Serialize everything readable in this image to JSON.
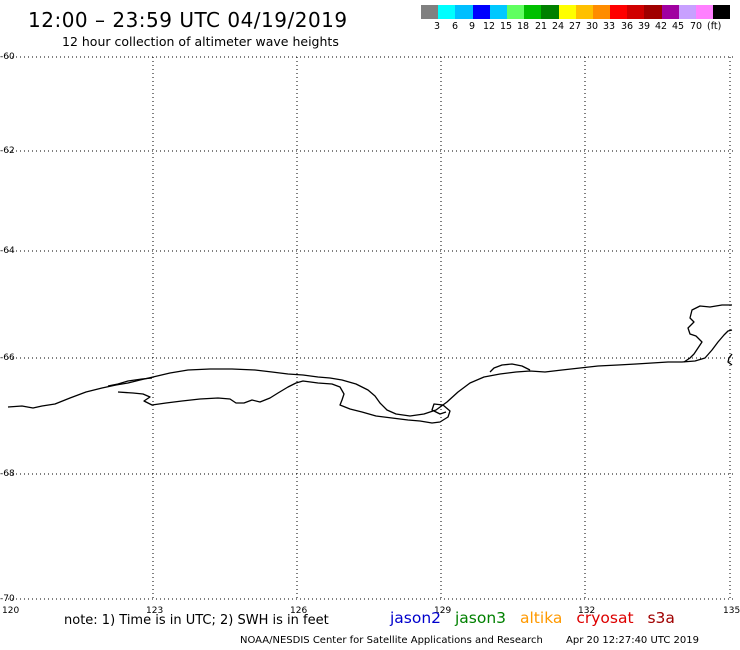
{
  "header": {
    "title": "12:00 – 23:59 UTC 04/19/2019",
    "subtitle": "12 hour collection of altimeter wave heights"
  },
  "legend": {
    "unit": "(ft)",
    "colors": [
      "#808080",
      "#00ffff",
      "#00bfff",
      "#0000ff",
      "#00c8ff",
      "#60ff60",
      "#00c000",
      "#008000",
      "#ffff00",
      "#ffc000",
      "#ff8c00",
      "#ff0000",
      "#d00000",
      "#a00000",
      "#a000a0",
      "#c8a0ff",
      "#ff80ff",
      "#000000"
    ],
    "labels": [
      "3",
      "6",
      "9",
      "12",
      "15",
      "18",
      "21",
      "24",
      "27",
      "30",
      "33",
      "36",
      "39",
      "42",
      "45",
      "70"
    ]
  },
  "axes": {
    "y_ticks": [
      "-60",
      "-62",
      "-64",
      "-66",
      "-68",
      "-70"
    ],
    "x_ticks": [
      "120",
      "123",
      "126",
      "129",
      "132",
      "135"
    ]
  },
  "footer": {
    "note": "note: 1) Time is in UTC; 2) SWH is in feet",
    "satellites": [
      {
        "name": "jason2",
        "color": "#0000cc"
      },
      {
        "name": "jason3",
        "color": "#008000"
      },
      {
        "name": "altika",
        "color": "#ff9900"
      },
      {
        "name": "cryosat",
        "color": "#dd0000"
      },
      {
        "name": "s3a",
        "color": "#a00000"
      }
    ],
    "credit": "NOAA/NESDIS Center for Satellite Applications and Research",
    "timestamp": "Apr 20 12:27:40 UTC 2019"
  }
}
